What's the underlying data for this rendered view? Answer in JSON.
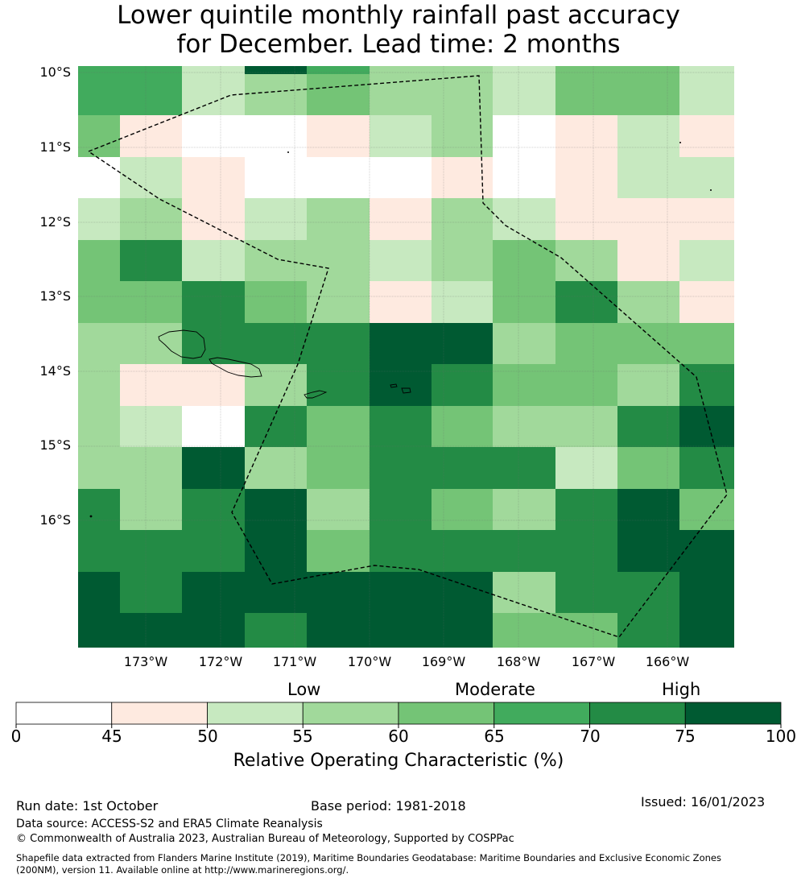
{
  "title": {
    "line1": "Lower quintile monthly rainfall past accuracy",
    "line2": "for December. Lead time: 2 months"
  },
  "map": {
    "lat_labels": [
      "10°S",
      "11°S",
      "12°S",
      "13°S",
      "14°S",
      "15°S",
      "16°S"
    ],
    "lon_labels": [
      "173°W",
      "172°W",
      "171°W",
      "170°W",
      "169°W",
      "168°W",
      "167°W",
      "166°W"
    ],
    "grid_rows": [
      [
        5,
        5,
        2,
        3,
        4,
        3,
        3,
        2,
        4,
        4,
        2
      ],
      [
        4,
        1,
        0,
        0,
        1,
        2,
        3,
        0,
        1,
        2,
        1
      ],
      [
        0,
        2,
        1,
        0,
        0,
        0,
        1,
        0,
        1,
        2,
        2
      ],
      [
        2,
        3,
        1,
        2,
        3,
        1,
        3,
        2,
        1,
        1,
        1
      ],
      [
        4,
        6,
        2,
        3,
        3,
        2,
        3,
        4,
        3,
        1,
        2
      ],
      [
        4,
        4,
        6,
        4,
        3,
        1,
        2,
        4,
        6,
        3,
        1
      ],
      [
        3,
        3,
        6,
        6,
        6,
        7,
        7,
        3,
        4,
        4,
        4
      ],
      [
        3,
        1,
        1,
        3,
        6,
        7,
        6,
        4,
        4,
        3,
        6
      ],
      [
        3,
        2,
        0,
        6,
        4,
        6,
        4,
        3,
        3,
        6,
        7
      ],
      [
        3,
        3,
        7,
        3,
        4,
        6,
        6,
        6,
        2,
        4,
        6
      ],
      [
        6,
        3,
        6,
        7,
        3,
        6,
        4,
        3,
        6,
        7,
        4
      ],
      [
        6,
        6,
        6,
        7,
        4,
        6,
        6,
        6,
        6,
        8,
        7
      ],
      [
        7,
        6,
        7,
        8,
        8,
        8,
        7,
        3,
        6,
        6,
        7
      ],
      [
        8,
        7,
        7,
        6,
        8,
        8,
        8,
        4,
        4,
        6,
        7
      ]
    ]
  },
  "colorbar": {
    "colors": [
      "#ffffff",
      "#feeae0",
      "#c7e9c0",
      "#a1d99b",
      "#74c476",
      "#41ab5d",
      "#238b45",
      "#005a32"
    ],
    "ticks": [
      "0",
      "45",
      "50",
      "55",
      "60",
      "65",
      "70",
      "75",
      "100"
    ],
    "categories": [
      "Low",
      "Moderate",
      "High"
    ],
    "label": "Relative Operating Characteristic (%)"
  },
  "footer": {
    "run_date": "Run date: 1st October",
    "base_period": "Base period: 1981-2018",
    "issued": "Issued: 16/01/2023",
    "data_source": "Data source: ACCESS-S2 and ERA5 Climate Reanalysis",
    "copyright": "© Commonwealth of Australia 2023, Australian Bureau of Meteorology, Supported by COSPPac",
    "shapefile_line1": "Shapefile data extracted from Flanders Marine Institute (2019), Maritime Boundaries Geodatabase: Maritime Boundaries and Exclusive Economic Zones",
    "shapefile_line2": "(200NM), version 11. Available online at http://www.marineregions.org/."
  }
}
